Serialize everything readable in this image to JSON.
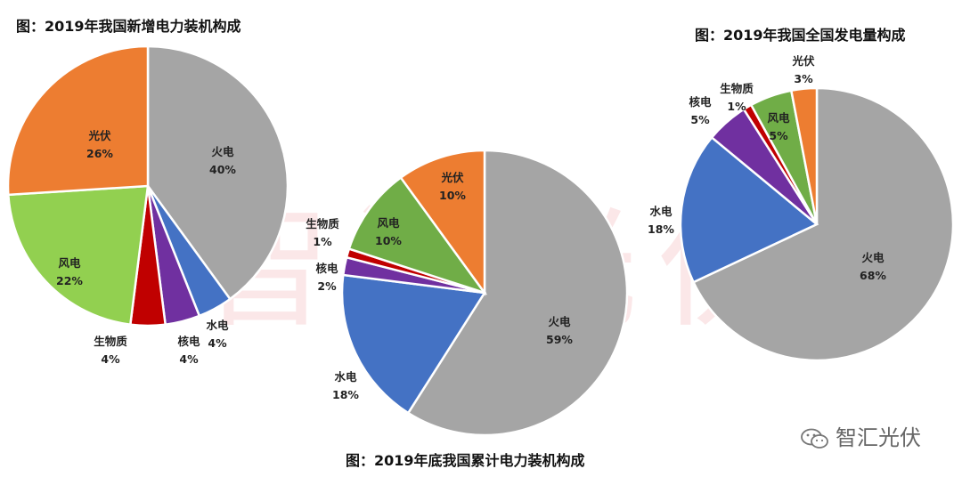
{
  "watermark": "智汇光伏",
  "brand": {
    "name": "智汇光伏",
    "icon": "wechat-icon",
    "color": "#666666"
  },
  "chart_data": [
    {
      "type": "pie",
      "title": "图：2019年我国新增电力装机构成",
      "slices": [
        {
          "label": "火电",
          "value": 40,
          "display": "40%",
          "color": "#A5A5A5"
        },
        {
          "label": "水电",
          "value": 4,
          "display": "4%",
          "color": "#4472C4"
        },
        {
          "label": "核电",
          "value": 4,
          "display": "4%",
          "color": "#7030A0"
        },
        {
          "label": "生物质",
          "value": 4,
          "display": "4%",
          "color": "#C00000"
        },
        {
          "label": "风电",
          "value": 22,
          "display": "22%",
          "color": "#92D050"
        },
        {
          "label": "光伏",
          "value": 26,
          "display": "26%",
          "color": "#ED7D31"
        }
      ]
    },
    {
      "type": "pie",
      "title": "图：2019年底我国累计电力装机构成",
      "slices": [
        {
          "label": "火电",
          "value": 59,
          "display": "59%",
          "color": "#A5A5A5"
        },
        {
          "label": "水电",
          "value": 18,
          "display": "18%",
          "color": "#4472C4"
        },
        {
          "label": "核电",
          "value": 2,
          "display": "2%",
          "color": "#7030A0"
        },
        {
          "label": "生物质",
          "value": 1,
          "display": "1%",
          "color": "#C00000"
        },
        {
          "label": "风电",
          "value": 10,
          "display": "10%",
          "color": "#70AD47"
        },
        {
          "label": "光伏",
          "value": 10,
          "display": "10%",
          "color": "#ED7D31"
        }
      ]
    },
    {
      "type": "pie",
      "title": "图：2019年我国全国发电量构成",
      "slices": [
        {
          "label": "火电",
          "value": 68,
          "display": "68%",
          "color": "#A5A5A5"
        },
        {
          "label": "水电",
          "value": 18,
          "display": "18%",
          "color": "#4472C4"
        },
        {
          "label": "核电",
          "value": 5,
          "display": "5%",
          "color": "#7030A0"
        },
        {
          "label": "生物质",
          "value": 1,
          "display": "1%",
          "color": "#C00000"
        },
        {
          "label": "风电",
          "value": 5,
          "display": "5%",
          "color": "#70AD47"
        },
        {
          "label": "光伏",
          "value": 3,
          "display": "3%",
          "color": "#ED7D31"
        }
      ]
    }
  ]
}
